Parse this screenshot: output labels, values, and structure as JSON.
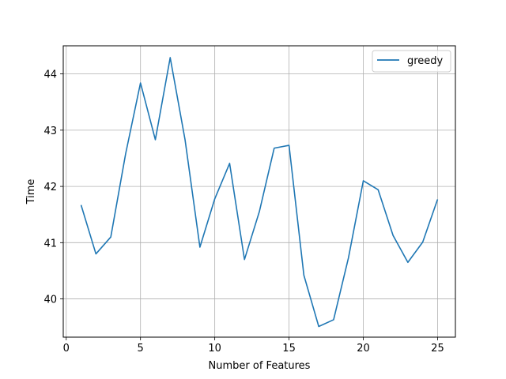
{
  "chart_data": {
    "type": "line",
    "title": "",
    "xlabel": "Number of Features",
    "ylabel": "Time",
    "xlim": [
      -0.2,
      26.2
    ],
    "ylim": [
      39.32,
      44.5
    ],
    "xticks": [
      0,
      5,
      10,
      15,
      20,
      25
    ],
    "yticks": [
      40,
      41,
      42,
      43,
      44
    ],
    "grid": true,
    "legend_position": "upper right",
    "x": [
      1,
      2,
      3,
      4,
      5,
      6,
      7,
      8,
      9,
      10,
      11,
      12,
      13,
      14,
      15,
      16,
      17,
      18,
      19,
      20,
      21,
      22,
      23,
      24,
      25
    ],
    "series": [
      {
        "name": "greedy",
        "color": "#1f77b4",
        "values": [
          41.67,
          40.8,
          41.1,
          42.58,
          43.84,
          42.83,
          44.29,
          42.83,
          40.92,
          41.78,
          42.41,
          40.7,
          41.55,
          42.68,
          42.73,
          40.42,
          39.51,
          39.63,
          40.73,
          42.1,
          41.94,
          41.13,
          40.65,
          41.01,
          41.77
        ]
      }
    ]
  }
}
